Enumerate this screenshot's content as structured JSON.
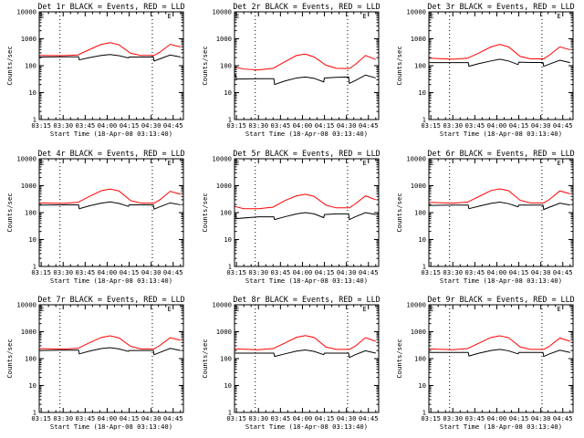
{
  "shared": {
    "xlabel": "Start Time (18-Apr-08 03:13:40)",
    "ylabel": "Counts/sec",
    "x_tick_labels": [
      "03:15",
      "03:30",
      "03:45",
      "04:00",
      "04:15",
      "04:30",
      "04:45"
    ],
    "x_ticks_min": [
      15,
      30,
      45,
      60,
      75,
      90,
      105
    ],
    "x_range_min": [
      13.67,
      112
    ],
    "y_tick_labels": [
      "1",
      "10",
      "100",
      "1000",
      "10000"
    ],
    "y_ticks": [
      1,
      10,
      100,
      1000,
      10000
    ],
    "y_range": [
      1,
      10000
    ],
    "y_scale": "log",
    "dotted_vlines_min": [
      27.8,
      90.8
    ],
    "colors": {
      "events": "#000000",
      "lld": "#ff0000",
      "axes": "#000000",
      "background": "#ffffff"
    }
  },
  "chart_data": [
    {
      "type": "line",
      "title": "Det 1r BLACK = Events, RED = LLD",
      "marker": "E",
      "xlim": [
        13.67,
        112
      ],
      "ylim": [
        1,
        10000
      ],
      "series": [
        {
          "color": "#000000",
          "x": [
            13.67,
            30,
            40.5,
            41,
            48,
            56,
            62,
            68,
            74.5,
            75,
            83,
            91.5,
            92,
            96,
            103,
            110
          ],
          "y": [
            210,
            215,
            215,
            165,
            200,
            240,
            260,
            235,
            195,
            210,
            210,
            210,
            150,
            180,
            250,
            210
          ]
        },
        {
          "color": "#ff0000",
          "x": [
            13.67,
            30,
            40,
            48,
            56,
            62,
            68,
            76,
            83,
            92,
            96,
            103,
            110
          ],
          "y": [
            240,
            235,
            250,
            400,
            620,
            720,
            600,
            290,
            240,
            240,
            320,
            620,
            500
          ]
        }
      ]
    },
    {
      "type": "line",
      "title": "Det 2r BLACK = Events, RED = LLD",
      "marker": "E",
      "xlim": [
        13.67,
        112
      ],
      "ylim": [
        1,
        10000
      ],
      "series": [
        {
          "color": "#000000",
          "x": [
            13.67,
            14.5,
            15,
            30,
            40.5,
            41,
            48,
            56,
            62,
            68,
            74.5,
            75,
            83,
            91.5,
            92,
            96,
            103,
            110
          ],
          "y": [
            45,
            45,
            32,
            33,
            33,
            20,
            27,
            35,
            38,
            34,
            25,
            35,
            37,
            38,
            22,
            28,
            45,
            35
          ]
        },
        {
          "color": "#ff0000",
          "x": [
            13.67,
            20,
            30,
            40,
            48,
            56,
            62,
            68,
            76,
            83,
            92,
            96,
            103,
            110
          ],
          "y": [
            90,
            75,
            70,
            80,
            140,
            240,
            270,
            210,
            105,
            80,
            78,
            110,
            240,
            170
          ]
        }
      ]
    },
    {
      "type": "line",
      "title": "Det 3r BLACK = Events, RED = LLD",
      "marker": "E",
      "xlim": [
        13.67,
        112
      ],
      "ylim": [
        1,
        10000
      ],
      "series": [
        {
          "color": "#000000",
          "x": [
            13.67,
            30,
            40.5,
            41,
            48,
            56,
            62,
            68,
            74.5,
            75,
            83,
            91.5,
            92,
            96,
            103,
            110
          ],
          "y": [
            130,
            130,
            130,
            95,
            120,
            150,
            175,
            150,
            110,
            135,
            132,
            132,
            95,
            115,
            160,
            130
          ]
        },
        {
          "color": "#ff0000",
          "x": [
            13.67,
            30,
            40,
            48,
            56,
            62,
            68,
            76,
            83,
            92,
            96,
            103,
            110
          ],
          "y": [
            190,
            175,
            190,
            300,
            500,
            620,
            500,
            220,
            180,
            180,
            250,
            500,
            390
          ]
        }
      ]
    },
    {
      "type": "line",
      "title": "Det 4r BLACK = Events, RED = LLD",
      "marker": "E",
      "xlim": [
        13.67,
        112
      ],
      "ylim": [
        1,
        10000
      ],
      "series": [
        {
          "color": "#000000",
          "x": [
            13.67,
            30,
            40.5,
            41,
            48,
            56,
            62,
            68,
            74.5,
            75,
            83,
            91.5,
            92,
            96,
            103,
            110
          ],
          "y": [
            190,
            195,
            195,
            140,
            180,
            225,
            250,
            220,
            170,
            195,
            195,
            195,
            135,
            165,
            230,
            195
          ]
        },
        {
          "color": "#ff0000",
          "x": [
            13.67,
            30,
            40,
            48,
            56,
            62,
            68,
            76,
            83,
            92,
            96,
            103,
            110
          ],
          "y": [
            230,
            220,
            240,
            400,
            650,
            750,
            640,
            280,
            225,
            225,
            300,
            620,
            480
          ]
        }
      ]
    },
    {
      "type": "line",
      "title": "Det 5r BLACK = Events, RED = LLD",
      "marker": "E",
      "xlim": [
        13.67,
        112
      ],
      "ylim": [
        1,
        10000
      ],
      "series": [
        {
          "color": "#000000",
          "x": [
            13.67,
            14.5,
            15,
            30,
            40.5,
            41,
            48,
            56,
            62,
            68,
            74.5,
            75,
            83,
            91.5,
            92,
            96,
            103,
            110
          ],
          "y": [
            80,
            80,
            60,
            70,
            70,
            55,
            70,
            90,
            100,
            90,
            65,
            85,
            90,
            90,
            55,
            70,
            100,
            85
          ]
        },
        {
          "color": "#ff0000",
          "x": [
            13.67,
            20,
            30,
            40,
            48,
            56,
            62,
            68,
            76,
            83,
            92,
            96,
            103,
            110
          ],
          "y": [
            170,
            140,
            140,
            160,
            280,
            420,
            480,
            400,
            190,
            150,
            150,
            210,
            420,
            300
          ]
        }
      ]
    },
    {
      "type": "line",
      "title": "Det 6r BLACK = Events, RED = LLD",
      "marker": "E",
      "xlim": [
        13.67,
        112
      ],
      "ylim": [
        1,
        10000
      ],
      "series": [
        {
          "color": "#000000",
          "x": [
            13.67,
            30,
            40.5,
            41,
            48,
            56,
            62,
            68,
            74.5,
            75,
            83,
            91.5,
            92,
            96,
            103,
            110
          ],
          "y": [
            185,
            190,
            190,
            140,
            175,
            220,
            245,
            215,
            165,
            190,
            190,
            190,
            130,
            160,
            225,
            190
          ]
        },
        {
          "color": "#ff0000",
          "x": [
            13.67,
            30,
            40,
            48,
            56,
            62,
            68,
            76,
            83,
            92,
            96,
            103,
            110
          ],
          "y": [
            240,
            225,
            245,
            400,
            660,
            760,
            650,
            285,
            230,
            230,
            310,
            640,
            500
          ]
        }
      ]
    },
    {
      "type": "line",
      "title": "Det 7r BLACK = Events, RED = LLD",
      "marker": "E",
      "xlim": [
        13.67,
        112
      ],
      "ylim": [
        1,
        10000
      ],
      "series": [
        {
          "color": "#000000",
          "x": [
            13.67,
            30,
            40.5,
            41,
            48,
            56,
            62,
            68,
            74.5,
            75,
            83,
            91.5,
            92,
            96,
            103,
            110
          ],
          "y": [
            200,
            205,
            205,
            150,
            190,
            235,
            255,
            230,
            185,
            200,
            200,
            200,
            140,
            170,
            240,
            200
          ]
        },
        {
          "color": "#ff0000",
          "x": [
            13.67,
            30,
            40,
            48,
            56,
            62,
            68,
            76,
            83,
            92,
            96,
            103,
            110
          ],
          "y": [
            235,
            225,
            240,
            390,
            610,
            700,
            590,
            285,
            230,
            230,
            310,
            600,
            480
          ]
        }
      ]
    },
    {
      "type": "line",
      "title": "Det 8r BLACK = Events, RED = LLD",
      "marker": "E",
      "xlim": [
        13.67,
        112
      ],
      "ylim": [
        1,
        10000
      ],
      "series": [
        {
          "color": "#000000",
          "x": [
            13.67,
            30,
            40.5,
            41,
            48,
            56,
            62,
            68,
            74.5,
            75,
            83,
            91.5,
            92,
            96,
            103,
            110
          ],
          "y": [
            160,
            160,
            160,
            120,
            150,
            190,
            210,
            185,
            140,
            160,
            160,
            160,
            110,
            140,
            195,
            160
          ]
        },
        {
          "color": "#ff0000",
          "x": [
            13.67,
            30,
            40,
            48,
            56,
            62,
            68,
            76,
            83,
            92,
            96,
            103,
            110
          ],
          "y": [
            230,
            215,
            235,
            380,
            620,
            720,
            610,
            270,
            220,
            220,
            290,
            600,
            440
          ]
        }
      ]
    },
    {
      "type": "line",
      "title": "Det 9r BLACK = Events, RED = LLD",
      "marker": "E",
      "xlim": [
        13.67,
        112
      ],
      "ylim": [
        1,
        10000
      ],
      "series": [
        {
          "color": "#000000",
          "x": [
            13.67,
            30,
            40.5,
            41,
            48,
            56,
            62,
            68,
            74.5,
            75,
            83,
            91.5,
            92,
            96,
            103,
            110
          ],
          "y": [
            170,
            170,
            170,
            125,
            160,
            200,
            220,
            195,
            150,
            170,
            170,
            170,
            120,
            150,
            205,
            170
          ]
        },
        {
          "color": "#ff0000",
          "x": [
            13.67,
            30,
            40,
            48,
            56,
            62,
            68,
            76,
            83,
            92,
            96,
            103,
            110
          ],
          "y": [
            230,
            215,
            235,
            380,
            610,
            700,
            600,
            270,
            220,
            220,
            290,
            580,
            440
          ]
        }
      ]
    }
  ]
}
